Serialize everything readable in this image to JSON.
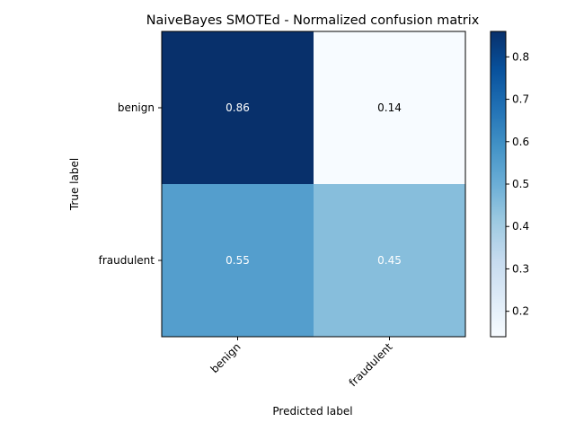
{
  "chart_data": {
    "type": "heatmap",
    "title": "NaiveBayes SMOTEd - Normalized confusion matrix",
    "xlabel": "Predicted label",
    "ylabel": "True label",
    "x_categories": [
      "benign",
      "fraudulent"
    ],
    "y_categories": [
      "benign",
      "fraudulent"
    ],
    "values": [
      [
        0.86,
        0.14
      ],
      [
        0.55,
        0.45
      ]
    ],
    "cell_labels": [
      [
        "0.86",
        "0.14"
      ],
      [
        "0.55",
        "0.45"
      ]
    ],
    "colormap": "Blues",
    "colorbar": {
      "range": [
        0.14,
        0.86
      ],
      "ticks": [
        0.2,
        0.3,
        0.4,
        0.5,
        0.6,
        0.7,
        0.8
      ],
      "tick_labels": [
        "0.2",
        "0.3",
        "0.4",
        "0.5",
        "0.6",
        "0.7",
        "0.8"
      ]
    },
    "colors": {
      "light_text": "#ffffff",
      "dark_text": "#000000",
      "cmap_stops": [
        "#f7fbff",
        "#deebf7",
        "#c6dbef",
        "#9ecae1",
        "#6baed6",
        "#4292c6",
        "#2171b5",
        "#08519c",
        "#08306b"
      ]
    }
  }
}
